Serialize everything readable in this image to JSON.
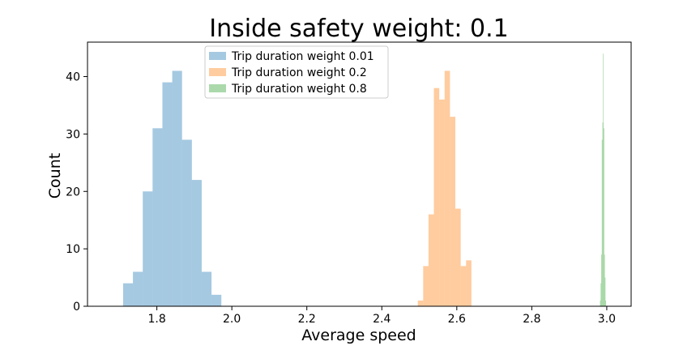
{
  "chart_data": {
    "type": "bar",
    "title": "Inside safety weight: 0.1",
    "xlabel": "Average speed",
    "ylabel": "Count",
    "xlim": [
      1.615,
      3.065
    ],
    "ylim": [
      0,
      46
    ],
    "xticks": [
      "1.8",
      "2.0",
      "2.2",
      "2.4",
      "2.6",
      "2.8",
      "3.0"
    ],
    "yticks": [
      "0",
      "10",
      "20",
      "30",
      "40"
    ],
    "grid": false,
    "legend_position": "top-left",
    "bar_opacity": 0.4,
    "series": [
      {
        "name": "Trip duration weight 0.01",
        "color": "#1f77b4",
        "bin_start": 1.71,
        "bin_width": 0.0262,
        "counts": [
          4,
          6,
          20,
          31,
          39,
          41,
          29,
          22,
          6,
          2
        ]
      },
      {
        "name": "Trip duration weight 0.2",
        "color": "#ff7f0e",
        "bin_start": 2.496,
        "bin_width": 0.0143,
        "counts": [
          1,
          7,
          16,
          38,
          36,
          41,
          33,
          17,
          7,
          8
        ]
      },
      {
        "name": "Trip duration weight 0.8",
        "color": "#2ca02c",
        "bin_start": 2.982,
        "bin_width": 0.0016,
        "counts": [
          1,
          4,
          9,
          29,
          32,
          44,
          31,
          9,
          5,
          1
        ]
      }
    ]
  }
}
